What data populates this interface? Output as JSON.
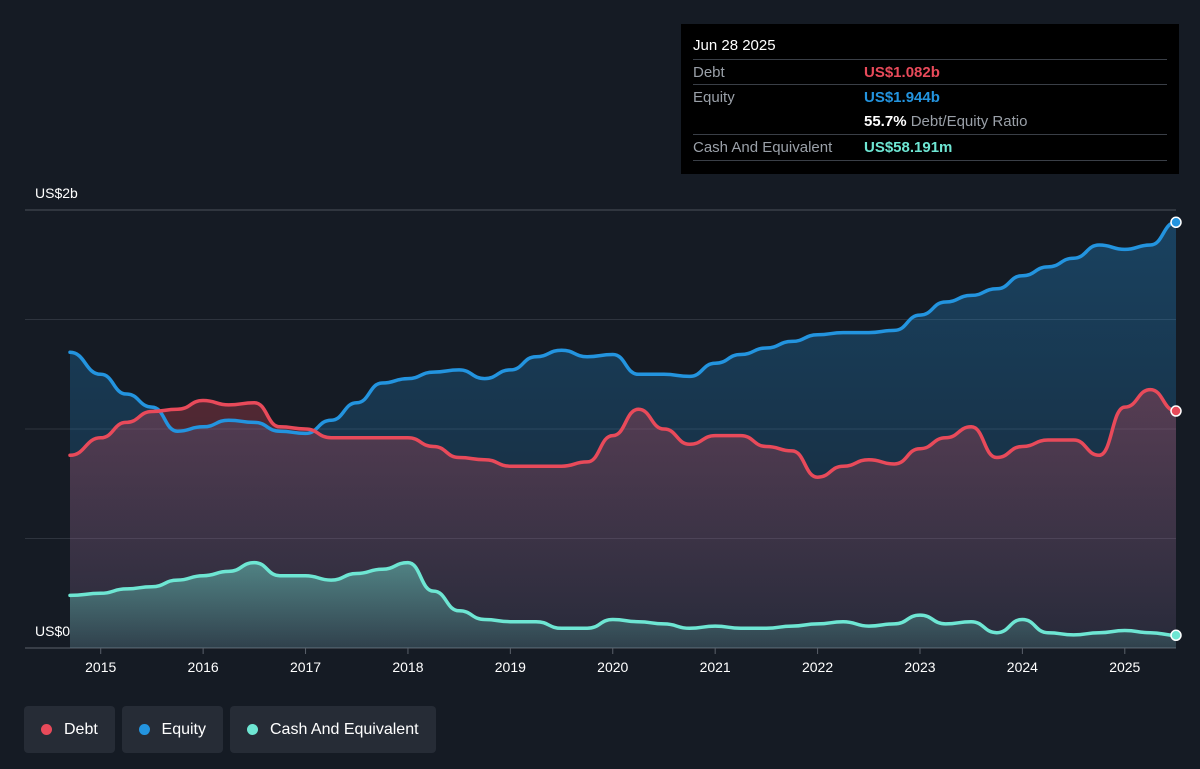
{
  "tooltip": {
    "date": "Jun 28 2025",
    "debt_label": "Debt",
    "debt_value": "US$1.082b",
    "equity_label": "Equity",
    "equity_value": "US$1.944b",
    "ratio_value": "55.7%",
    "ratio_label": "Debt/Equity Ratio",
    "cash_label": "Cash And Equivalent",
    "cash_value": "US$58.191m"
  },
  "legend": [
    {
      "label": "Debt",
      "color": "#e84a5a"
    },
    {
      "label": "Equity",
      "color": "#2394df"
    },
    {
      "label": "Cash And Equivalent",
      "color": "#6ee6d3"
    }
  ],
  "colors": {
    "debt": "#e84a5a",
    "equity": "#2394df",
    "cash": "#6ee6d3",
    "background": "#151b24",
    "grid": "#3a404a"
  },
  "chart_data": {
    "type": "area",
    "ylabel_top": "US$2b",
    "ylabel_bottom": "US$0",
    "ylim": [
      0,
      2.0
    ],
    "xlim": [
      2014.7,
      2025.5
    ],
    "x_ticks": [
      2015,
      2016,
      2017,
      2018,
      2019,
      2020,
      2021,
      2022,
      2023,
      2024,
      2025
    ],
    "x_tick_labels": [
      "2015",
      "2016",
      "2017",
      "2018",
      "2019",
      "2020",
      "2021",
      "2022",
      "2023",
      "2024",
      "2025"
    ],
    "grid": true,
    "legend_position": "bottom-left",
    "series": [
      {
        "name": "Equity",
        "points": [
          [
            2014.7,
            1.35
          ],
          [
            2015.0,
            1.25
          ],
          [
            2015.25,
            1.16
          ],
          [
            2015.5,
            1.1
          ],
          [
            2015.75,
            0.99
          ],
          [
            2016.0,
            1.01
          ],
          [
            2016.25,
            1.04
          ],
          [
            2016.5,
            1.03
          ],
          [
            2016.75,
            0.99
          ],
          [
            2017.0,
            0.98
          ],
          [
            2017.25,
            1.04
          ],
          [
            2017.5,
            1.12
          ],
          [
            2017.75,
            1.21
          ],
          [
            2018.0,
            1.23
          ],
          [
            2018.25,
            1.26
          ],
          [
            2018.5,
            1.27
          ],
          [
            2018.75,
            1.23
          ],
          [
            2019.0,
            1.27
          ],
          [
            2019.25,
            1.33
          ],
          [
            2019.5,
            1.36
          ],
          [
            2019.75,
            1.33
          ],
          [
            2020.0,
            1.34
          ],
          [
            2020.25,
            1.25
          ],
          [
            2020.5,
            1.25
          ],
          [
            2020.75,
            1.24
          ],
          [
            2021.0,
            1.3
          ],
          [
            2021.25,
            1.34
          ],
          [
            2021.5,
            1.37
          ],
          [
            2021.75,
            1.4
          ],
          [
            2022.0,
            1.43
          ],
          [
            2022.25,
            1.44
          ],
          [
            2022.5,
            1.44
          ],
          [
            2022.75,
            1.45
          ],
          [
            2023.0,
            1.52
          ],
          [
            2023.25,
            1.58
          ],
          [
            2023.5,
            1.61
          ],
          [
            2023.75,
            1.64
          ],
          [
            2024.0,
            1.7
          ],
          [
            2024.25,
            1.74
          ],
          [
            2024.5,
            1.78
          ],
          [
            2024.75,
            1.84
          ],
          [
            2025.0,
            1.82
          ],
          [
            2025.25,
            1.84
          ],
          [
            2025.5,
            1.944
          ]
        ]
      },
      {
        "name": "Debt",
        "points": [
          [
            2014.7,
            0.88
          ],
          [
            2015.0,
            0.96
          ],
          [
            2015.25,
            1.03
          ],
          [
            2015.5,
            1.08
          ],
          [
            2015.75,
            1.09
          ],
          [
            2016.0,
            1.13
          ],
          [
            2016.25,
            1.11
          ],
          [
            2016.5,
            1.12
          ],
          [
            2016.75,
            1.01
          ],
          [
            2017.0,
            1.0
          ],
          [
            2017.25,
            0.96
          ],
          [
            2017.5,
            0.96
          ],
          [
            2017.75,
            0.96
          ],
          [
            2018.0,
            0.96
          ],
          [
            2018.25,
            0.92
          ],
          [
            2018.5,
            0.87
          ],
          [
            2018.75,
            0.86
          ],
          [
            2019.0,
            0.83
          ],
          [
            2019.25,
            0.83
          ],
          [
            2019.5,
            0.83
          ],
          [
            2019.75,
            0.85
          ],
          [
            2020.0,
            0.97
          ],
          [
            2020.25,
            1.09
          ],
          [
            2020.5,
            1.0
          ],
          [
            2020.75,
            0.93
          ],
          [
            2021.0,
            0.97
          ],
          [
            2021.25,
            0.97
          ],
          [
            2021.5,
            0.92
          ],
          [
            2021.75,
            0.9
          ],
          [
            2022.0,
            0.78
          ],
          [
            2022.25,
            0.83
          ],
          [
            2022.5,
            0.86
          ],
          [
            2022.75,
            0.84
          ],
          [
            2023.0,
            0.91
          ],
          [
            2023.25,
            0.96
          ],
          [
            2023.5,
            1.01
          ],
          [
            2023.75,
            0.87
          ],
          [
            2024.0,
            0.92
          ],
          [
            2024.25,
            0.95
          ],
          [
            2024.5,
            0.95
          ],
          [
            2024.75,
            0.88
          ],
          [
            2025.0,
            1.1
          ],
          [
            2025.25,
            1.18
          ],
          [
            2025.5,
            1.082
          ]
        ]
      },
      {
        "name": "Cash And Equivalent",
        "points": [
          [
            2014.7,
            0.24
          ],
          [
            2015.0,
            0.25
          ],
          [
            2015.25,
            0.27
          ],
          [
            2015.5,
            0.28
          ],
          [
            2015.75,
            0.31
          ],
          [
            2016.0,
            0.33
          ],
          [
            2016.25,
            0.35
          ],
          [
            2016.5,
            0.39
          ],
          [
            2016.75,
            0.33
          ],
          [
            2017.0,
            0.33
          ],
          [
            2017.25,
            0.31
          ],
          [
            2017.5,
            0.34
          ],
          [
            2017.75,
            0.36
          ],
          [
            2018.0,
            0.39
          ],
          [
            2018.25,
            0.26
          ],
          [
            2018.5,
            0.17
          ],
          [
            2018.75,
            0.13
          ],
          [
            2019.0,
            0.12
          ],
          [
            2019.25,
            0.12
          ],
          [
            2019.5,
            0.09
          ],
          [
            2019.75,
            0.09
          ],
          [
            2020.0,
            0.13
          ],
          [
            2020.25,
            0.12
          ],
          [
            2020.5,
            0.11
          ],
          [
            2020.75,
            0.09
          ],
          [
            2021.0,
            0.1
          ],
          [
            2021.25,
            0.09
          ],
          [
            2021.5,
            0.09
          ],
          [
            2021.75,
            0.1
          ],
          [
            2022.0,
            0.11
          ],
          [
            2022.25,
            0.12
          ],
          [
            2022.5,
            0.1
          ],
          [
            2022.75,
            0.11
          ],
          [
            2023.0,
            0.15
          ],
          [
            2023.25,
            0.11
          ],
          [
            2023.5,
            0.12
          ],
          [
            2023.75,
            0.07
          ],
          [
            2024.0,
            0.13
          ],
          [
            2024.25,
            0.07
          ],
          [
            2024.5,
            0.06
          ],
          [
            2024.75,
            0.07
          ],
          [
            2025.0,
            0.08
          ],
          [
            2025.25,
            0.07
          ],
          [
            2025.5,
            0.058
          ]
        ]
      }
    ]
  }
}
